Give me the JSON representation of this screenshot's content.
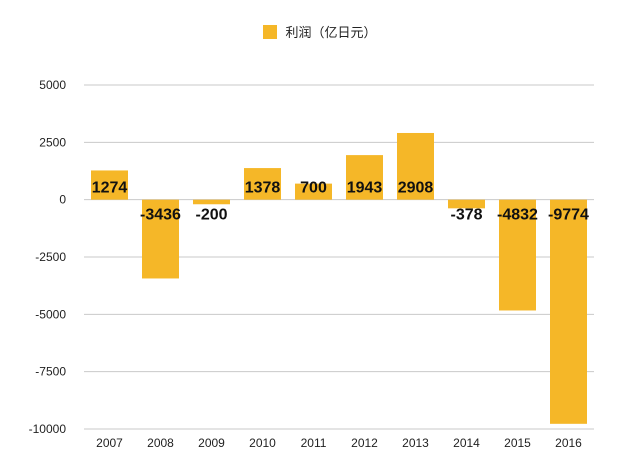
{
  "colors": {
    "bar": "#F5B728",
    "grid": "#C9C9C9",
    "text": "#222222",
    "label": "#111111"
  },
  "chart_data": {
    "type": "bar",
    "legend": "利润（亿日元）",
    "categories": [
      "2007",
      "2008",
      "2009",
      "2010",
      "2011",
      "2012",
      "2013",
      "2014",
      "2015",
      "2016"
    ],
    "values": [
      1274,
      -3436,
      -200,
      1378,
      700,
      1943,
      2908,
      -378,
      -4832,
      -9774
    ],
    "data_labels": [
      "1274",
      "-3436",
      "-200",
      "1378",
      "700",
      "1943",
      "2908",
      "-378",
      "-4832",
      "-9774"
    ],
    "ylim": [
      -10000,
      5000
    ],
    "yticks": [
      5000,
      2500,
      0,
      -2500,
      -5000,
      -7500,
      -10000
    ],
    "ytick_labels": [
      "5000",
      "2500",
      "0",
      "-2500",
      "-5000",
      "-7500",
      "-10000"
    ],
    "title": "",
    "xlabel": "",
    "ylabel": "",
    "grid": true,
    "legend_position": "top-center"
  }
}
